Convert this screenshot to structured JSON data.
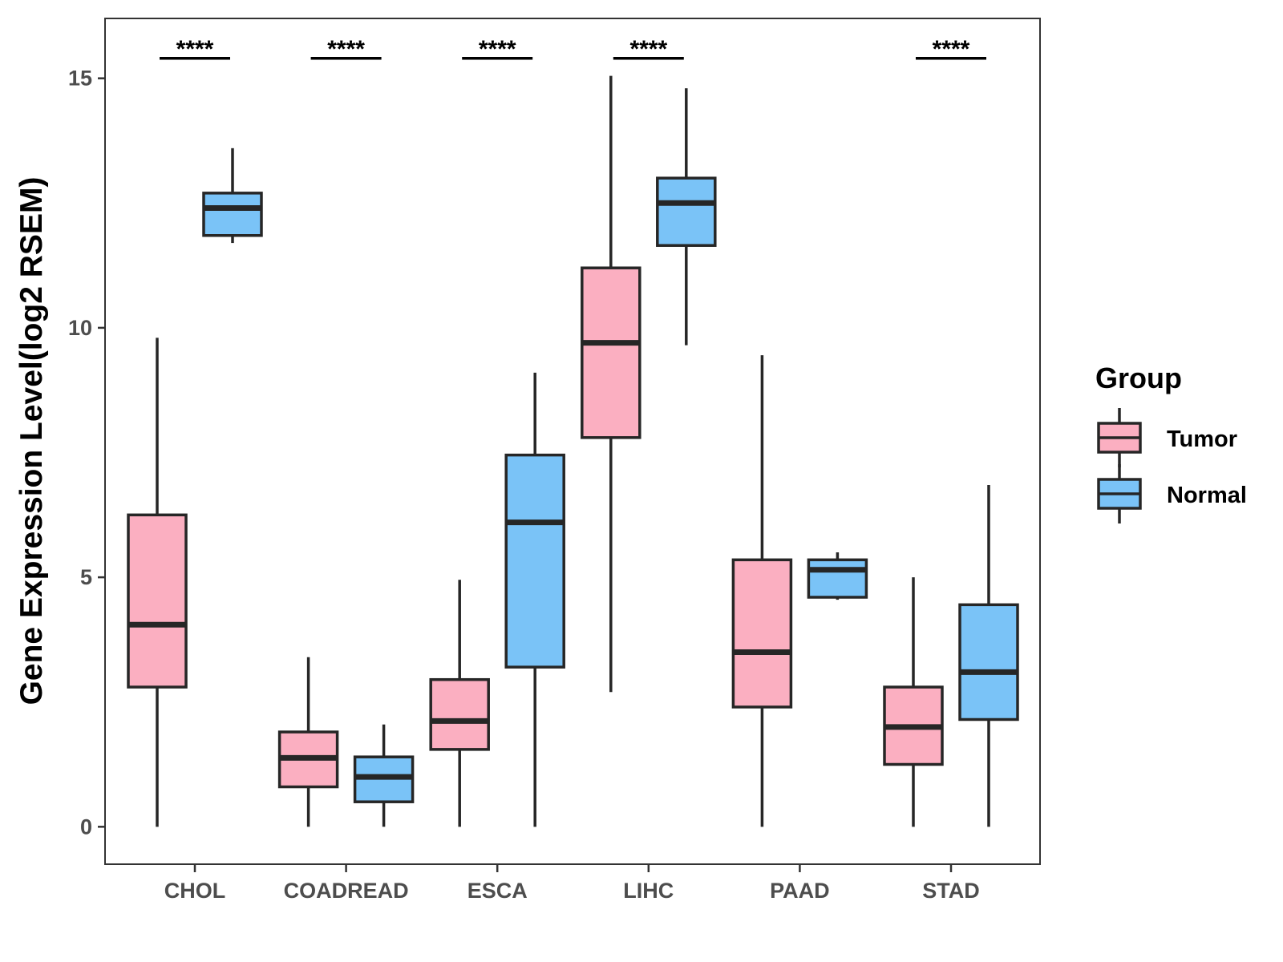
{
  "chart_data": {
    "type": "boxplot",
    "title": "",
    "xlabel": "",
    "ylabel": "Gene Expression Level(log2 RSEM)",
    "ylim": [
      -0.75,
      16.2
    ],
    "yticks": [
      0,
      5,
      10,
      15
    ],
    "categories": [
      "CHOL",
      "COADREAD",
      "ESCA",
      "LIHC",
      "PAAD",
      "STAD"
    ],
    "legend": {
      "title": "Group",
      "position": "right",
      "entries": [
        "Tumor",
        "Normal"
      ]
    },
    "series": [
      {
        "name": "Tumor",
        "color": "#FBAFC1",
        "boxes": [
          {
            "category": "CHOL",
            "min": 0,
            "q1": 2.8,
            "median": 4.05,
            "q3": 6.25,
            "max": 9.8
          },
          {
            "category": "COADREAD",
            "min": 0,
            "q1": 0.8,
            "median": 1.38,
            "q3": 1.9,
            "max": 3.4
          },
          {
            "category": "ESCA",
            "min": 0,
            "q1": 1.55,
            "median": 2.12,
            "q3": 2.95,
            "max": 4.95
          },
          {
            "category": "LIHC",
            "min": 2.7,
            "q1": 7.8,
            "median": 9.7,
            "q3": 11.2,
            "max": 15.05
          },
          {
            "category": "PAAD",
            "min": 0,
            "q1": 2.4,
            "median": 3.5,
            "q3": 5.35,
            "max": 9.45
          },
          {
            "category": "STAD",
            "min": 0,
            "q1": 1.25,
            "median": 2.0,
            "q3": 2.8,
            "max": 5.0
          }
        ]
      },
      {
        "name": "Normal",
        "color": "#7AC3F7",
        "boxes": [
          {
            "category": "CHOL",
            "min": 11.7,
            "q1": 11.85,
            "median": 12.4,
            "q3": 12.7,
            "max": 13.6
          },
          {
            "category": "COADREAD",
            "min": 0,
            "q1": 0.5,
            "median": 1.0,
            "q3": 1.4,
            "max": 2.05
          },
          {
            "category": "ESCA",
            "min": 0,
            "q1": 3.2,
            "median": 6.1,
            "q3": 7.45,
            "max": 9.1
          },
          {
            "category": "LIHC",
            "min": 9.65,
            "q1": 11.65,
            "median": 12.5,
            "q3": 13.0,
            "max": 14.8
          },
          {
            "category": "PAAD",
            "min": 4.55,
            "q1": 4.6,
            "median": 5.15,
            "q3": 5.35,
            "max": 5.5
          },
          {
            "category": "STAD",
            "min": 0,
            "q1": 2.15,
            "median": 3.1,
            "q3": 4.45,
            "max": 6.85
          }
        ]
      }
    ],
    "significance": [
      {
        "category": "CHOL",
        "label": "****",
        "y": 15.4
      },
      {
        "category": "COADREAD",
        "label": "****",
        "y": 15.4
      },
      {
        "category": "ESCA",
        "label": "****",
        "y": 15.4
      },
      {
        "category": "LIHC",
        "label": "****",
        "y": 15.4
      },
      {
        "category": "PAAD",
        "label": "",
        "y": 15.4
      },
      {
        "category": "STAD",
        "label": "****",
        "y": 15.4
      }
    ]
  }
}
